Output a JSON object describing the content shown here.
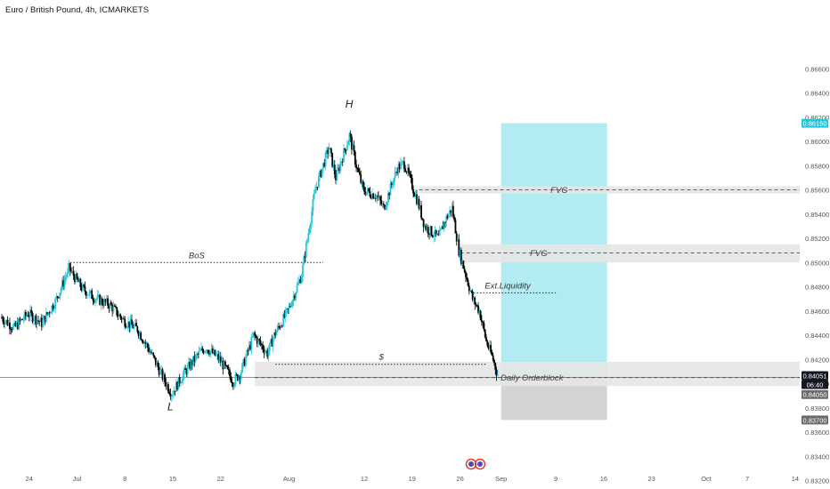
{
  "header": {
    "symbol_title": "Euro / British Pound, 4h, ICMARKETS"
  },
  "colors": {
    "up": "#26c6da",
    "down": "#000000",
    "background": "#ffffff",
    "tp_zone": "#b2ebf2",
    "sl_zone": "#d4d4d4",
    "fvg_zone": "#e6e6e6",
    "orderblock_zone": "#e6e6e6",
    "badge_dark": "#131722",
    "badge_gray": "#6b6b6b",
    "badge_teal": "#26c6da",
    "event_icon": "#e53935"
  },
  "chart_data": {
    "type": "candlestick",
    "title": "Euro / British Pound, 4h, ICMARKETS",
    "y_axis": {
      "side": "right",
      "ylim": [
        0.82,
        0.867
      ],
      "ticks": [
        "0.86600",
        "0.86400",
        "0.86200",
        "0.86000",
        "0.85800",
        "0.85600",
        "0.85400",
        "0.85200",
        "0.85000",
        "0.84800",
        "0.84600",
        "0.84400",
        "0.84200",
        "0.84000",
        "0.83800",
        "0.83600",
        "0.83400",
        "0.83200"
      ],
      "tick_values": [
        0.866,
        0.864,
        0.862,
        0.86,
        0.858,
        0.856,
        0.854,
        0.852,
        0.85,
        0.848,
        0.846,
        0.844,
        0.842,
        0.84,
        0.838,
        0.836,
        0.834,
        0.832
      ]
    },
    "x_axis": {
      "labels": [
        "24",
        "Jul",
        "8",
        "15",
        "22",
        "Aug",
        "12",
        "19",
        "26",
        "Sep",
        "9",
        "16",
        "23",
        "Oct",
        "7",
        "14"
      ],
      "label_days": [
        -7,
        0,
        7,
        14,
        21,
        31,
        42,
        49,
        56,
        62,
        70,
        77,
        84,
        92,
        98,
        105
      ]
    },
    "price_path": [
      {
        "day": -11,
        "price": 0.8455
      },
      {
        "day": -9,
        "price": 0.8446
      },
      {
        "day": -7,
        "price": 0.8458
      },
      {
        "day": -5,
        "price": 0.845
      },
      {
        "day": -3,
        "price": 0.8468
      },
      {
        "day": -1,
        "price": 0.8495
      },
      {
        "day": 1,
        "price": 0.8478
      },
      {
        "day": 3,
        "price": 0.847
      },
      {
        "day": 5,
        "price": 0.8465
      },
      {
        "day": 7,
        "price": 0.8452
      },
      {
        "day": 9,
        "price": 0.8445
      },
      {
        "day": 11,
        "price": 0.8425
      },
      {
        "day": 13,
        "price": 0.8402
      },
      {
        "day": 14,
        "price": 0.8392
      },
      {
        "day": 16,
        "price": 0.841
      },
      {
        "day": 18,
        "price": 0.8425
      },
      {
        "day": 19,
        "price": 0.843
      },
      {
        "day": 21,
        "price": 0.842
      },
      {
        "day": 23,
        "price": 0.8402
      },
      {
        "day": 24,
        "price": 0.8408
      },
      {
        "day": 26,
        "price": 0.844
      },
      {
        "day": 28,
        "price": 0.8425
      },
      {
        "day": 29,
        "price": 0.844
      },
      {
        "day": 31,
        "price": 0.846
      },
      {
        "day": 33,
        "price": 0.849
      },
      {
        "day": 35,
        "price": 0.856
      },
      {
        "day": 37,
        "price": 0.8595
      },
      {
        "day": 38,
        "price": 0.857
      },
      {
        "day": 40,
        "price": 0.8605
      },
      {
        "day": 41,
        "price": 0.858
      },
      {
        "day": 42,
        "price": 0.856
      },
      {
        "day": 44,
        "price": 0.8555
      },
      {
        "day": 45,
        "price": 0.8545
      },
      {
        "day": 47,
        "price": 0.8578
      },
      {
        "day": 48,
        "price": 0.8582
      },
      {
        "day": 50,
        "price": 0.855
      },
      {
        "day": 51,
        "price": 0.853
      },
      {
        "day": 53,
        "price": 0.852
      },
      {
        "day": 54,
        "price": 0.8535
      },
      {
        "day": 55,
        "price": 0.8545
      },
      {
        "day": 56,
        "price": 0.851
      },
      {
        "day": 57,
        "price": 0.849
      },
      {
        "day": 58,
        "price": 0.847
      },
      {
        "day": 59,
        "price": 0.846
      },
      {
        "day": 60,
        "price": 0.8435
      },
      {
        "day": 61,
        "price": 0.842
      },
      {
        "day": 61.6,
        "price": 0.8408
      }
    ],
    "current_price": 0.84051,
    "countdown": "06:40",
    "position": {
      "type": "long",
      "entry": 0.8405,
      "target": 0.8615,
      "stop": 0.837,
      "entry_label": "0.84050",
      "target_label": "0.86150",
      "stop_label": "0.83700",
      "start_day": 62,
      "end_day": 77.5
    },
    "zones": [
      {
        "name": "FVG",
        "top": 0.8563,
        "bottom": 0.8557,
        "start_day": 50,
        "end_day": 108,
        "line": 0.856
      },
      {
        "name": "FVG",
        "top": 0.8515,
        "bottom": 0.85,
        "start_day": 56,
        "end_day": 108,
        "line": 0.8508
      },
      {
        "name": "Daily Orderblock",
        "top": 0.8418,
        "bottom": 0.8398,
        "start_day": 26,
        "end_day": 112,
        "line": 0.8405
      }
    ],
    "lines": [
      {
        "name": "BoS",
        "price": 0.85,
        "start_day": -1,
        "end_day": 36
      },
      {
        "name": "Ext.Liquidity",
        "price": 0.8475,
        "start_day": 58,
        "end_day": 70
      },
      {
        "name": "$",
        "price": 0.8416,
        "start_day": 29,
        "end_day": 60
      }
    ],
    "annotations": [
      {
        "text": "H",
        "day": 40,
        "price": 0.8628
      },
      {
        "text": "L",
        "day": 14,
        "price": 0.8378
      }
    ]
  },
  "labels": {
    "bos": "BoS",
    "ext_liquidity": "Ext.Liquidity",
    "dollar": "$",
    "fvg_upper": "FVG",
    "fvg_lower": "FVG",
    "orderblock": "Daily Orderblock",
    "high": "H",
    "low": "L",
    "price_badge": "0.84051",
    "countdown_badge": "06:40",
    "entry_badge": "0.84050",
    "target_badge": "0.86150",
    "stop_badge": "0.83700"
  }
}
